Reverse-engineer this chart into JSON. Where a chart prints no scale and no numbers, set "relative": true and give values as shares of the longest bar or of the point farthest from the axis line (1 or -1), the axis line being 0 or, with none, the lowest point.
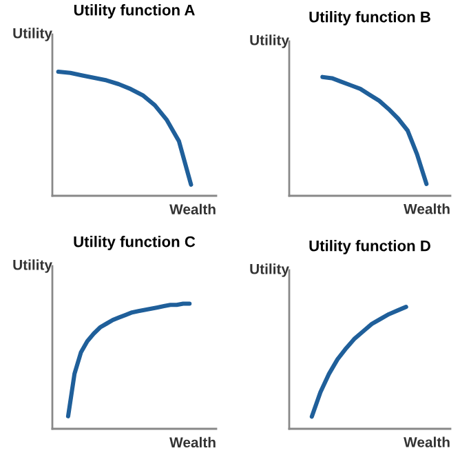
{
  "chart_data": [
    {
      "type": "line",
      "title": "Utility function A",
      "xlabel": "Wealth",
      "ylabel": "Utility",
      "relative": true,
      "categories": [
        null,
        null,
        null,
        null,
        null,
        null,
        null,
        null,
        null,
        null,
        null,
        null
      ],
      "series": [
        {
          "color": "#1f5f9a",
          "values": [
            1,
            0.99,
            0.97,
            0.95,
            0.93,
            0.9,
            0.86,
            0.81,
            0.73,
            0.61,
            0.44,
            0.09
          ]
        }
      ]
    },
    {
      "type": "line",
      "title": "Utility function B",
      "xlabel": "Wealth",
      "ylabel": "Utility",
      "relative": true,
      "categories": [
        null,
        null,
        null,
        null,
        null,
        null,
        null,
        null,
        null,
        null,
        null,
        null
      ],
      "series": [
        {
          "color": "#1f5f9a",
          "values": [
            1,
            0.99,
            0.96,
            0.93,
            0.9,
            0.85,
            0.8,
            0.73,
            0.65,
            0.55,
            0.35,
            0.1
          ]
        }
      ]
    },
    {
      "type": "line",
      "title": "Utility function C",
      "xlabel": "Wealth",
      "ylabel": "Utility",
      "relative": true,
      "categories": [
        null,
        null,
        null,
        null,
        null,
        null,
        null,
        null,
        null,
        null,
        null,
        null,
        null,
        null,
        null,
        null,
        null,
        null,
        null,
        null
      ],
      "series": [
        {
          "color": "#1f5f9a",
          "values": [
            0.1,
            0.44,
            0.61,
            0.7,
            0.76,
            0.81,
            0.84,
            0.87,
            0.89,
            0.91,
            0.93,
            0.94,
            0.95,
            0.96,
            0.97,
            0.98,
            0.99,
            0.99,
            1,
            1
          ]
        }
      ]
    },
    {
      "type": "line",
      "title": "Utility function D",
      "xlabel": "Wealth",
      "ylabel": "Utility",
      "relative": true,
      "categories": [
        null,
        null,
        null,
        null,
        null,
        null,
        null,
        null,
        null,
        null,
        null,
        null
      ],
      "series": [
        {
          "color": "#1f5f9a",
          "values": [
            0.1,
            0.3,
            0.45,
            0.57,
            0.66,
            0.74,
            0.8,
            0.86,
            0.9,
            0.94,
            0.97,
            1
          ]
        }
      ]
    }
  ]
}
